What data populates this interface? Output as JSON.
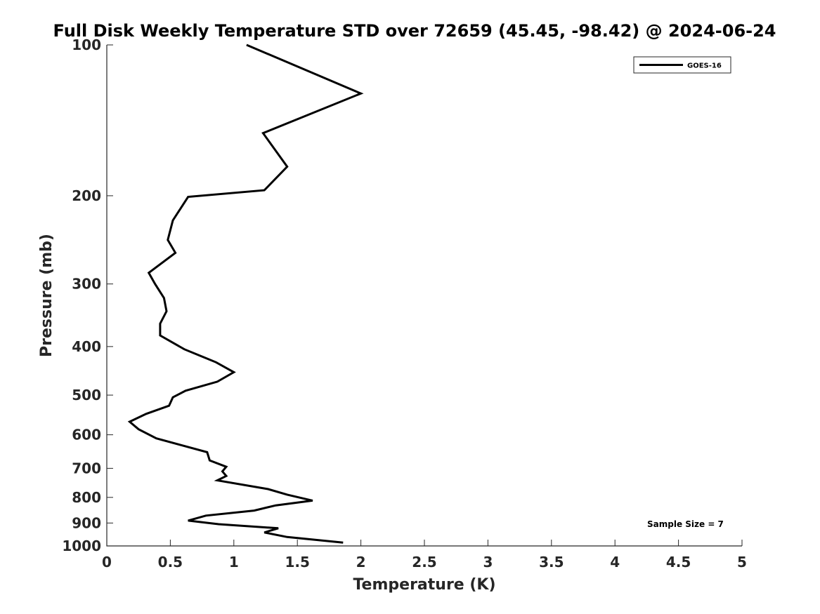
{
  "chart_data": {
    "type": "line",
    "title": "Full Disk Weekly Temperature STD over 72659 (45.45, -98.42) @ 2024-06-24",
    "xlabel": "Temperature (K)",
    "ylabel": "Pressure (mb)",
    "xlim": [
      0,
      5
    ],
    "ylim": [
      100,
      1000
    ],
    "y_scale": "log",
    "y_direction": "reverse",
    "x_ticks": [
      0,
      0.5,
      1,
      1.5,
      2,
      2.5,
      3,
      3.5,
      4,
      4.5,
      5
    ],
    "x_tick_labels": [
      "0",
      "0.5",
      "1",
      "1.5",
      "2",
      "2.5",
      "3",
      "3.5",
      "4",
      "4.5",
      "5"
    ],
    "y_ticks": [
      100,
      200,
      300,
      400,
      500,
      600,
      700,
      800,
      900,
      1000
    ],
    "y_tick_labels": [
      "100",
      "200",
      "300",
      "400",
      "500",
      "600",
      "700",
      "800",
      "900",
      "1000"
    ],
    "grid": false,
    "legend_position": "top-right",
    "series": [
      {
        "name": "GOES-16",
        "color": "#000000",
        "x": [
          1.1,
          2.0,
          1.23,
          1.42,
          1.24,
          0.64,
          0.52,
          0.48,
          0.54,
          0.33,
          0.38,
          0.45,
          0.47,
          0.42,
          0.42,
          0.61,
          0.86,
          1.0,
          0.87,
          0.62,
          0.52,
          0.49,
          0.31,
          0.18,
          0.25,
          0.39,
          0.79,
          0.81,
          0.94,
          0.91,
          0.94,
          0.87,
          1.27,
          1.42,
          1.62,
          1.33,
          1.16,
          0.78,
          0.64,
          0.88,
          1.35,
          1.24,
          1.42,
          1.86
        ],
        "y": [
          100,
          125,
          150,
          175,
          195,
          201,
          224,
          245,
          260,
          285,
          300,
          320,
          340,
          360,
          380,
          405,
          430,
          450,
          470,
          490,
          505,
          525,
          545,
          565,
          585,
          610,
          650,
          675,
          695,
          710,
          725,
          740,
          770,
          790,
          812,
          830,
          850,
          870,
          890,
          905,
          922,
          940,
          960,
          985
        ]
      }
    ],
    "annotations": [
      "Sample Size = 7"
    ]
  }
}
